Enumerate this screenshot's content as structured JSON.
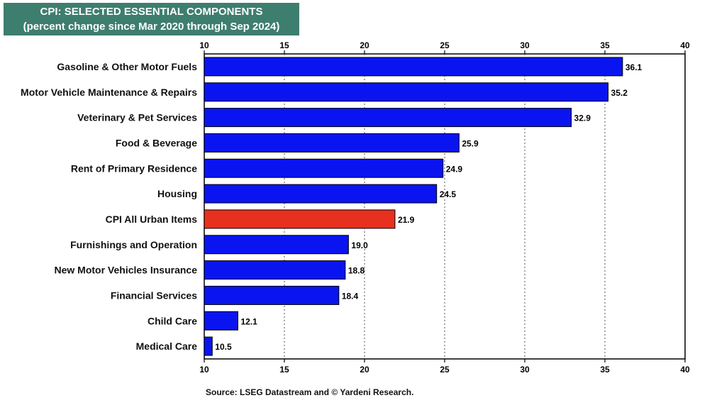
{
  "chart_data": {
    "type": "bar",
    "orientation": "horizontal",
    "title": "CPI: SELECTED ESSENTIAL COMPONENTS",
    "subtitle": "(percent change since Mar 2020 through Sep 2024)",
    "categories": [
      "Gasoline & Other Motor Fuels",
      "Motor Vehicle Maintenance & Repairs",
      "Veterinary & Pet Services",
      "Food & Beverage",
      "Rent of Primary Residence",
      "Housing",
      "CPI All Urban Items",
      "Furnishings and Operation",
      "New Motor Vehicles Insurance",
      "Financial Services",
      "Child Care",
      "Medical Care"
    ],
    "values": [
      36.1,
      35.2,
      32.9,
      25.9,
      24.9,
      24.5,
      21.9,
      19.0,
      18.8,
      18.4,
      12.1,
      10.5
    ],
    "value_labels": [
      "36.1",
      "35.2",
      "32.9",
      "25.9",
      "24.9",
      "24.5",
      "21.9",
      "19.0",
      "18.8",
      "18.4",
      "12.1",
      "10.5"
    ],
    "highlight_category": "CPI All Urban Items",
    "xlim": [
      10,
      40
    ],
    "xticks": [
      10,
      15,
      20,
      25,
      30,
      35,
      40
    ],
    "xtick_labels": [
      "10",
      "15",
      "20",
      "25",
      "30",
      "35",
      "40"
    ],
    "grid": "vertical dotted",
    "colors": {
      "bar": "#0a14f0",
      "highlight": "#e8301f",
      "title_bg": "#3e7e6e"
    }
  },
  "source": "Source: LSEG Datastream and © Yardeni Research."
}
